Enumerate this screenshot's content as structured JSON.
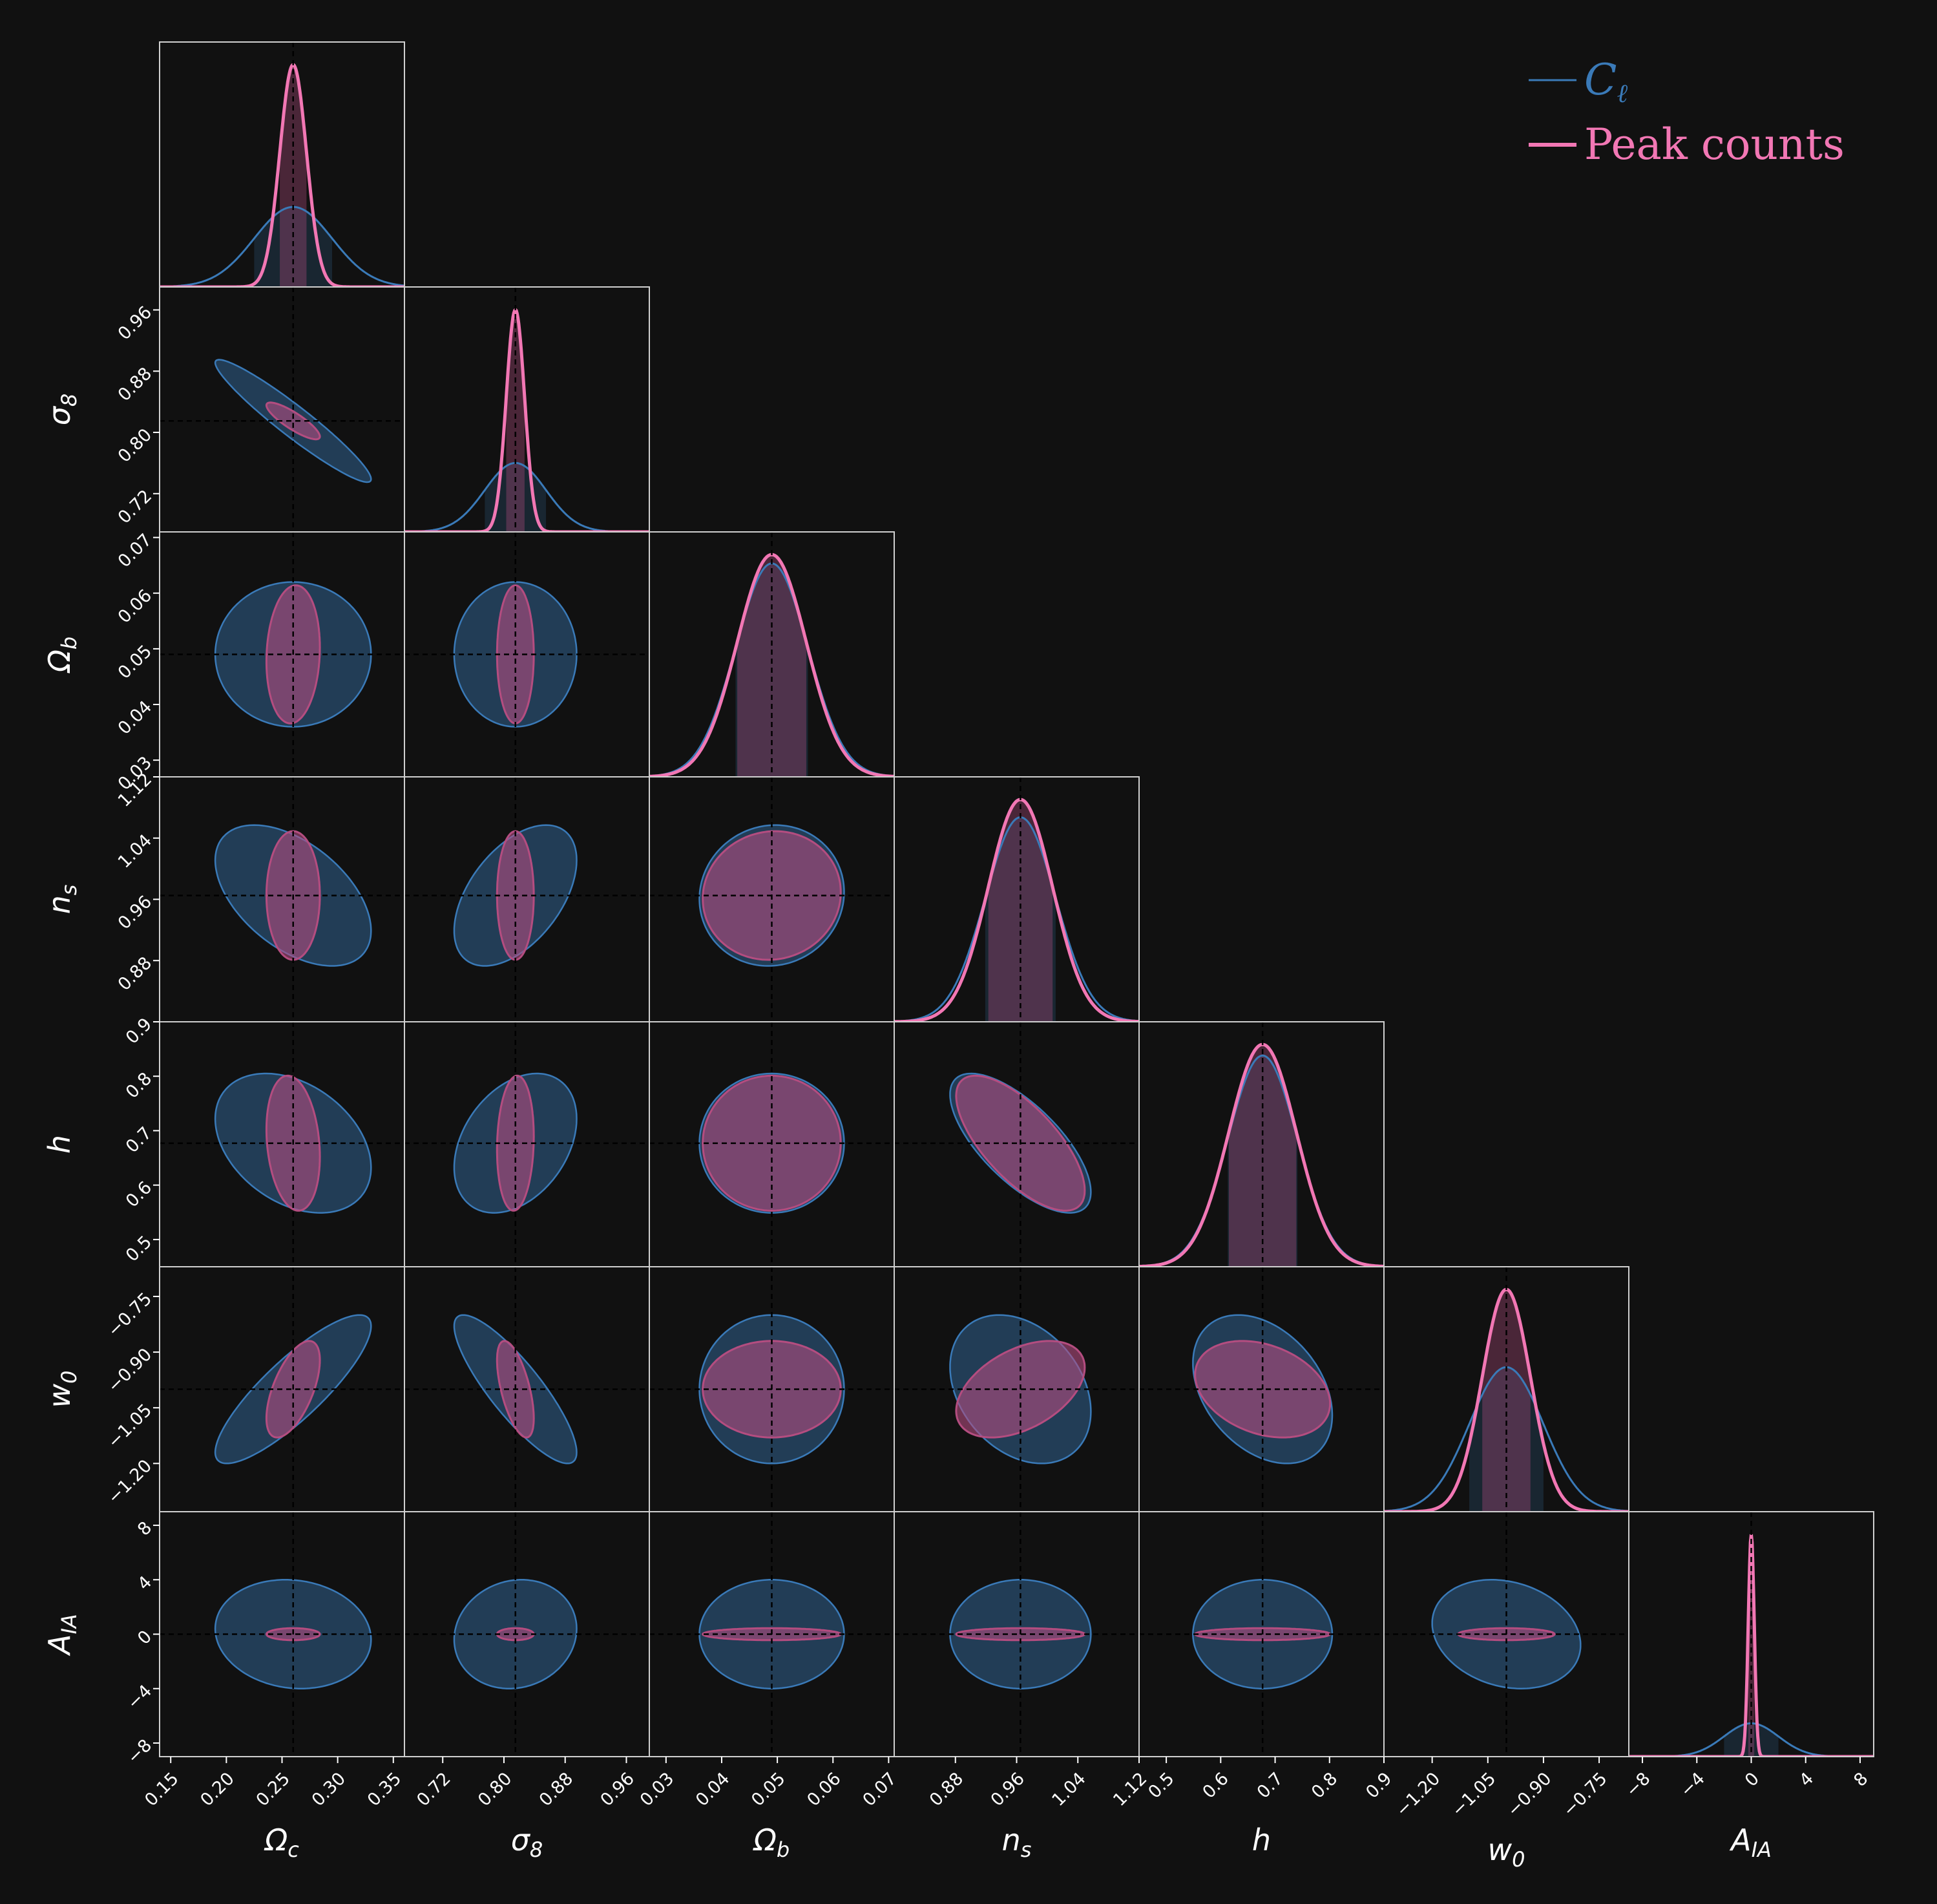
{
  "colors": {
    "background": "#111111",
    "panel_border": "#d0d0d0",
    "cl": "#3a7ab8",
    "cl_fill": "#284c6e",
    "peak": "#f277b4",
    "peak_fill": "#b44d80",
    "truth_line": "#000000"
  },
  "legend": {
    "cl_label": "Cℓ",
    "peak_label": "Peak counts",
    "position": "top-right"
  },
  "chart_data": {
    "type": "corner",
    "title": "",
    "params": [
      {
        "key": "omega_c",
        "label": "Ωc",
        "label_base": "Ω",
        "label_sub": "c",
        "range": [
          0.14,
          0.36
        ],
        "truth": 0.26,
        "ticks": [
          0.15,
          0.2,
          0.25,
          0.3,
          0.35
        ],
        "tick_labels": [
          "0.15",
          "0.20",
          "0.25",
          "0.30",
          "0.35"
        ],
        "cl_sigma": 0.035,
        "peak_sigma": 0.012,
        "cl_peak": 0.36,
        "peak_peak": 1.0
      },
      {
        "key": "sigma_8",
        "label": "σ8",
        "label_base": "σ",
        "label_sub": "8",
        "range": [
          0.67,
          0.99
        ],
        "truth": 0.815,
        "ticks": [
          0.72,
          0.8,
          0.88,
          0.96
        ],
        "tick_labels": [
          "0.72",
          "0.80",
          "0.88",
          "0.96"
        ],
        "cl_sigma": 0.04,
        "peak_sigma": 0.012,
        "cl_peak": 0.31,
        "peak_peak": 1.0
      },
      {
        "key": "omega_b",
        "label": "Ωb",
        "label_base": "Ω",
        "label_sub": "b",
        "range": [
          0.027,
          0.071
        ],
        "truth": 0.049,
        "ticks": [
          0.03,
          0.04,
          0.05,
          0.06,
          0.07
        ],
        "tick_labels": [
          "0.03",
          "0.04",
          "0.05",
          "0.06",
          "0.07"
        ],
        "cl_sigma": 0.0065,
        "peak_sigma": 0.0062,
        "cl_peak": 0.96,
        "peak_peak": 1.0
      },
      {
        "key": "n_s",
        "label": "ns",
        "label_base": "n",
        "label_sub": "s",
        "range": [
          0.8,
          1.12
        ],
        "truth": 0.965,
        "ticks": [
          0.88,
          0.96,
          1.04,
          1.12
        ],
        "tick_labels": [
          "0.88",
          "0.96",
          "1.04",
          "1.12"
        ],
        "cl_sigma": 0.046,
        "peak_sigma": 0.042,
        "cl_peak": 0.92,
        "peak_peak": 1.0
      },
      {
        "key": "h",
        "label": "h",
        "label_base": "h",
        "label_sub": "",
        "range": [
          0.45,
          0.9
        ],
        "truth": 0.677,
        "ticks": [
          0.5,
          0.6,
          0.7,
          0.8,
          0.9
        ],
        "tick_labels": [
          "0.5",
          "0.6",
          "0.7",
          "0.8",
          "0.9"
        ],
        "cl_sigma": 0.064,
        "peak_sigma": 0.062,
        "cl_peak": 0.95,
        "peak_peak": 1.0
      },
      {
        "key": "w_0",
        "label": "w0",
        "label_base": "w",
        "label_sub": "0",
        "range": [
          -1.33,
          -0.67
        ],
        "truth": -1.0,
        "ticks": [
          -1.2,
          -1.05,
          -0.9,
          -0.75
        ],
        "tick_labels": [
          "−1.20",
          "−1.05",
          "−0.90",
          "−0.75"
        ],
        "cl_sigma": 0.1,
        "peak_sigma": 0.065,
        "cl_peak": 0.65,
        "peak_peak": 1.0
      },
      {
        "key": "a_ia",
        "label": "AIA",
        "label_base": "A",
        "label_sub": "IA",
        "range": [
          -9,
          9
        ],
        "truth": 0,
        "ticks": [
          -8,
          -4,
          0,
          4,
          8
        ],
        "tick_labels": [
          "−8",
          "−4",
          "0",
          "4",
          "8"
        ],
        "cl_sigma": 2.0,
        "peak_sigma": 0.22,
        "cl_peak": 0.15,
        "peak_peak": 1.0
      }
    ],
    "covariances": [
      {
        "x": "omega_c",
        "y": "sigma_8",
        "cl_rho": -0.95,
        "peak_rho": -0.85
      },
      {
        "x": "omega_c",
        "y": "omega_b",
        "cl_rho": 0.0,
        "peak_rho": 0.1
      },
      {
        "x": "sigma_8",
        "y": "omega_b",
        "cl_rho": 0.0,
        "peak_rho": 0.0
      },
      {
        "x": "omega_c",
        "y": "n_s",
        "cl_rho": -0.5,
        "peak_rho": 0.0
      },
      {
        "x": "sigma_8",
        "y": "n_s",
        "cl_rho": 0.5,
        "peak_rho": 0.0
      },
      {
        "x": "omega_b",
        "y": "n_s",
        "cl_rho": 0.05,
        "peak_rho": 0.05
      },
      {
        "x": "omega_c",
        "y": "h",
        "cl_rho": -0.35,
        "peak_rho": -0.2
      },
      {
        "x": "sigma_8",
        "y": "h",
        "cl_rho": 0.35,
        "peak_rho": 0.1
      },
      {
        "x": "omega_b",
        "y": "h",
        "cl_rho": 0.0,
        "peak_rho": 0.0
      },
      {
        "x": "n_s",
        "y": "h",
        "cl_rho": -0.7,
        "peak_rho": -0.7
      },
      {
        "x": "omega_c",
        "y": "w_0",
        "cl_rho": 0.85,
        "peak_rho": 0.6
      },
      {
        "x": "sigma_8",
        "y": "w_0",
        "cl_rho": -0.85,
        "peak_rho": -0.6
      },
      {
        "x": "omega_b",
        "y": "w_0",
        "cl_rho": 0.0,
        "peak_rho": 0.0
      },
      {
        "x": "n_s",
        "y": "w_0",
        "cl_rho": -0.3,
        "peak_rho": 0.45
      },
      {
        "x": "h",
        "y": "w_0",
        "cl_rho": -0.35,
        "peak_rho": -0.3
      },
      {
        "x": "omega_c",
        "y": "a_ia",
        "cl_rho": -0.1,
        "peak_rho": 0.0
      },
      {
        "x": "sigma_8",
        "y": "a_ia",
        "cl_rho": 0.1,
        "peak_rho": 0.0
      },
      {
        "x": "omega_b",
        "y": "a_ia",
        "cl_rho": 0.0,
        "peak_rho": 0.0
      },
      {
        "x": "n_s",
        "y": "a_ia",
        "cl_rho": 0.0,
        "peak_rho": 0.0
      },
      {
        "x": "h",
        "y": "a_ia",
        "cl_rho": 0.0,
        "peak_rho": 0.0
      },
      {
        "x": "w_0",
        "y": "a_ia",
        "cl_rho": -0.2,
        "peak_rho": 0.0
      }
    ],
    "contour_level_sigma": 2.0,
    "grid": false
  }
}
